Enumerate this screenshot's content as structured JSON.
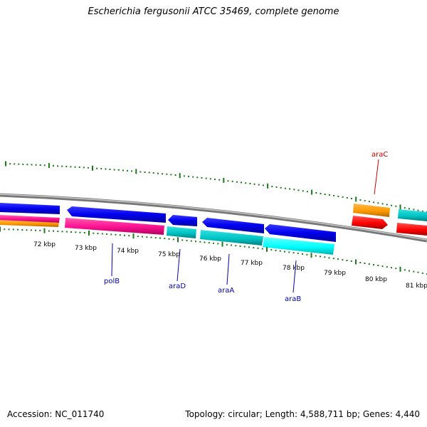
{
  "title": "Escherichia fergusonii ATCC 35469, complete genome",
  "footer": {
    "accession_label": "Accession:",
    "accession": "NC_011740",
    "topology_label": "Topology:",
    "topology": "circular;",
    "length_label": "Length:",
    "length": "4,588,711 bp;",
    "genes_label": "Genes:",
    "genes": "4,440"
  },
  "scale_labels": [
    "72 kbp",
    "73 kbp",
    "74 kbp",
    "75 kbp",
    "76 kbp",
    "77 kbp",
    "78 kbp",
    "79 kbp",
    "80 kbp",
    "81 kbp"
  ],
  "gene_labels": [
    {
      "name": "polB",
      "color": "#0000aa"
    },
    {
      "name": "araD",
      "color": "#0000aa"
    },
    {
      "name": "araA",
      "color": "#0000aa"
    },
    {
      "name": "araB",
      "color": "#0000aa"
    },
    {
      "name": "araC",
      "color": "#cc0000"
    }
  ],
  "colors": {
    "forward_cds": "#0000ee",
    "reverse_cds": "#ff1493",
    "cyan_feature": "#00cccc",
    "bright_cyan_feature": "#00ffff",
    "orange_feature": "#ff9900",
    "red_feature": "#ff0000",
    "backbone": "#888888",
    "ticks": "#1a7a1a"
  }
}
